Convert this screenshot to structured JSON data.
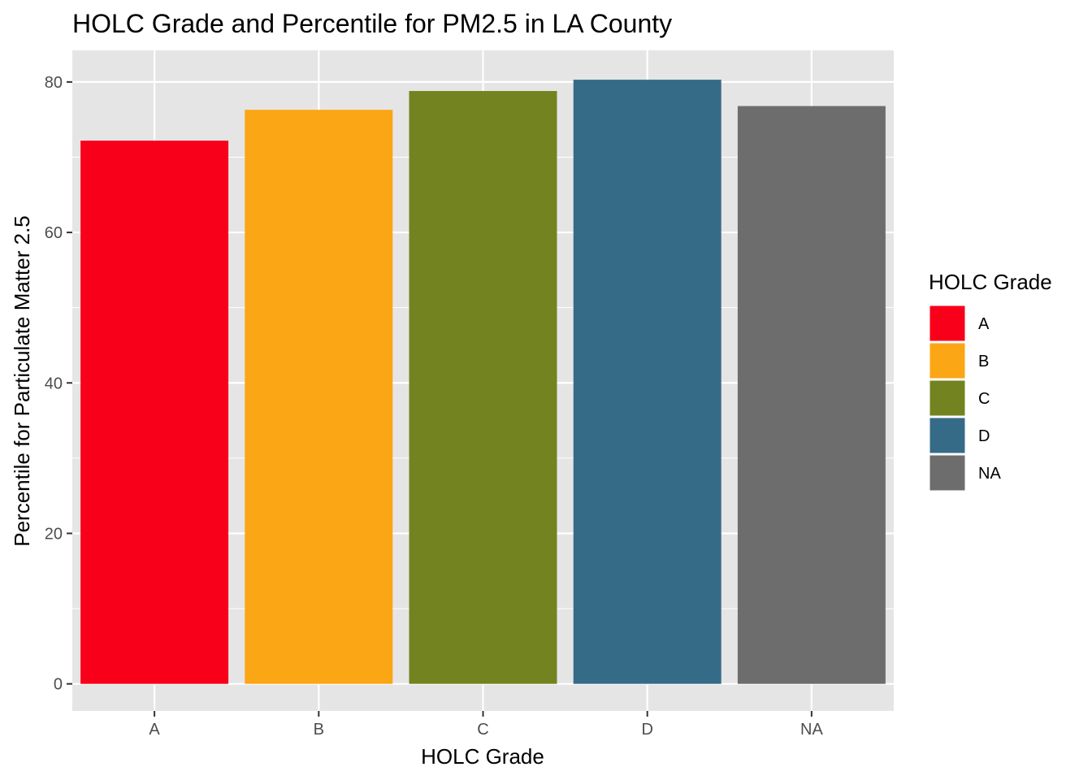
{
  "chart_data": {
    "type": "bar",
    "title": "HOLC Grade and Percentile for PM2.5 in LA County",
    "xlabel": "HOLC Grade",
    "ylabel": "Percentile for Particulate Matter 2.5",
    "categories": [
      "A",
      "B",
      "C",
      "D",
      "NA"
    ],
    "values": [
      72.2,
      76.3,
      78.8,
      80.3,
      76.8
    ],
    "colors": [
      "#F8001A",
      "#FBA615",
      "#73831F",
      "#366B88",
      "#6D6D6D"
    ],
    "ylim": [
      -3.6,
      84.2
    ],
    "yticks": [
      0,
      20,
      40,
      60,
      80
    ],
    "grid": true,
    "panel_background": "#E5E5E5",
    "legend": {
      "title": "HOLC Grade",
      "placement": "right",
      "entries": [
        "A",
        "B",
        "C",
        "D",
        "NA"
      ]
    }
  }
}
